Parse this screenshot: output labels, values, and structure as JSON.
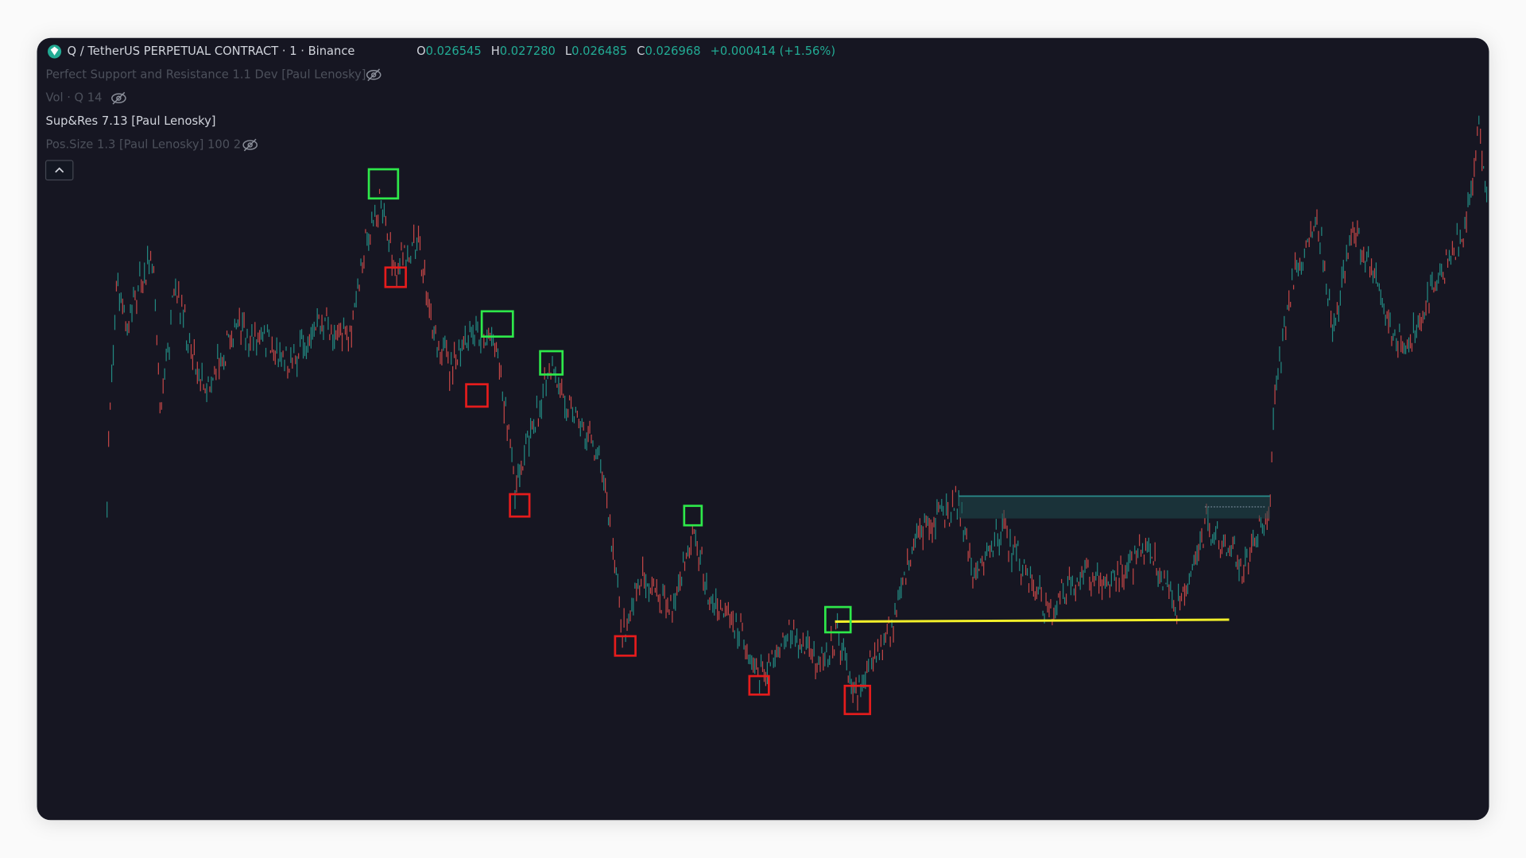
{
  "header": {
    "symbol": "Q / TetherUS PERPETUAL CONTRACT · 1 · Binance",
    "ohlc": [
      {
        "key": "O",
        "value": "0.026545"
      },
      {
        "key": "H",
        "value": "0.027280"
      },
      {
        "key": "L",
        "value": "0.026485"
      },
      {
        "key": "C",
        "value": "0.026968"
      }
    ],
    "change": "+0.000414 (+1.56%)"
  },
  "indicators": [
    "Perfect Support and Resistance 1.1 Dev [Paul Lenosky]",
    "Vol · Q 14",
    "Sup&Res 7.13 [Paul Lenosky]",
    "Pos.Size 1.3 [Paul Lenosky] 100 2"
  ]
}
